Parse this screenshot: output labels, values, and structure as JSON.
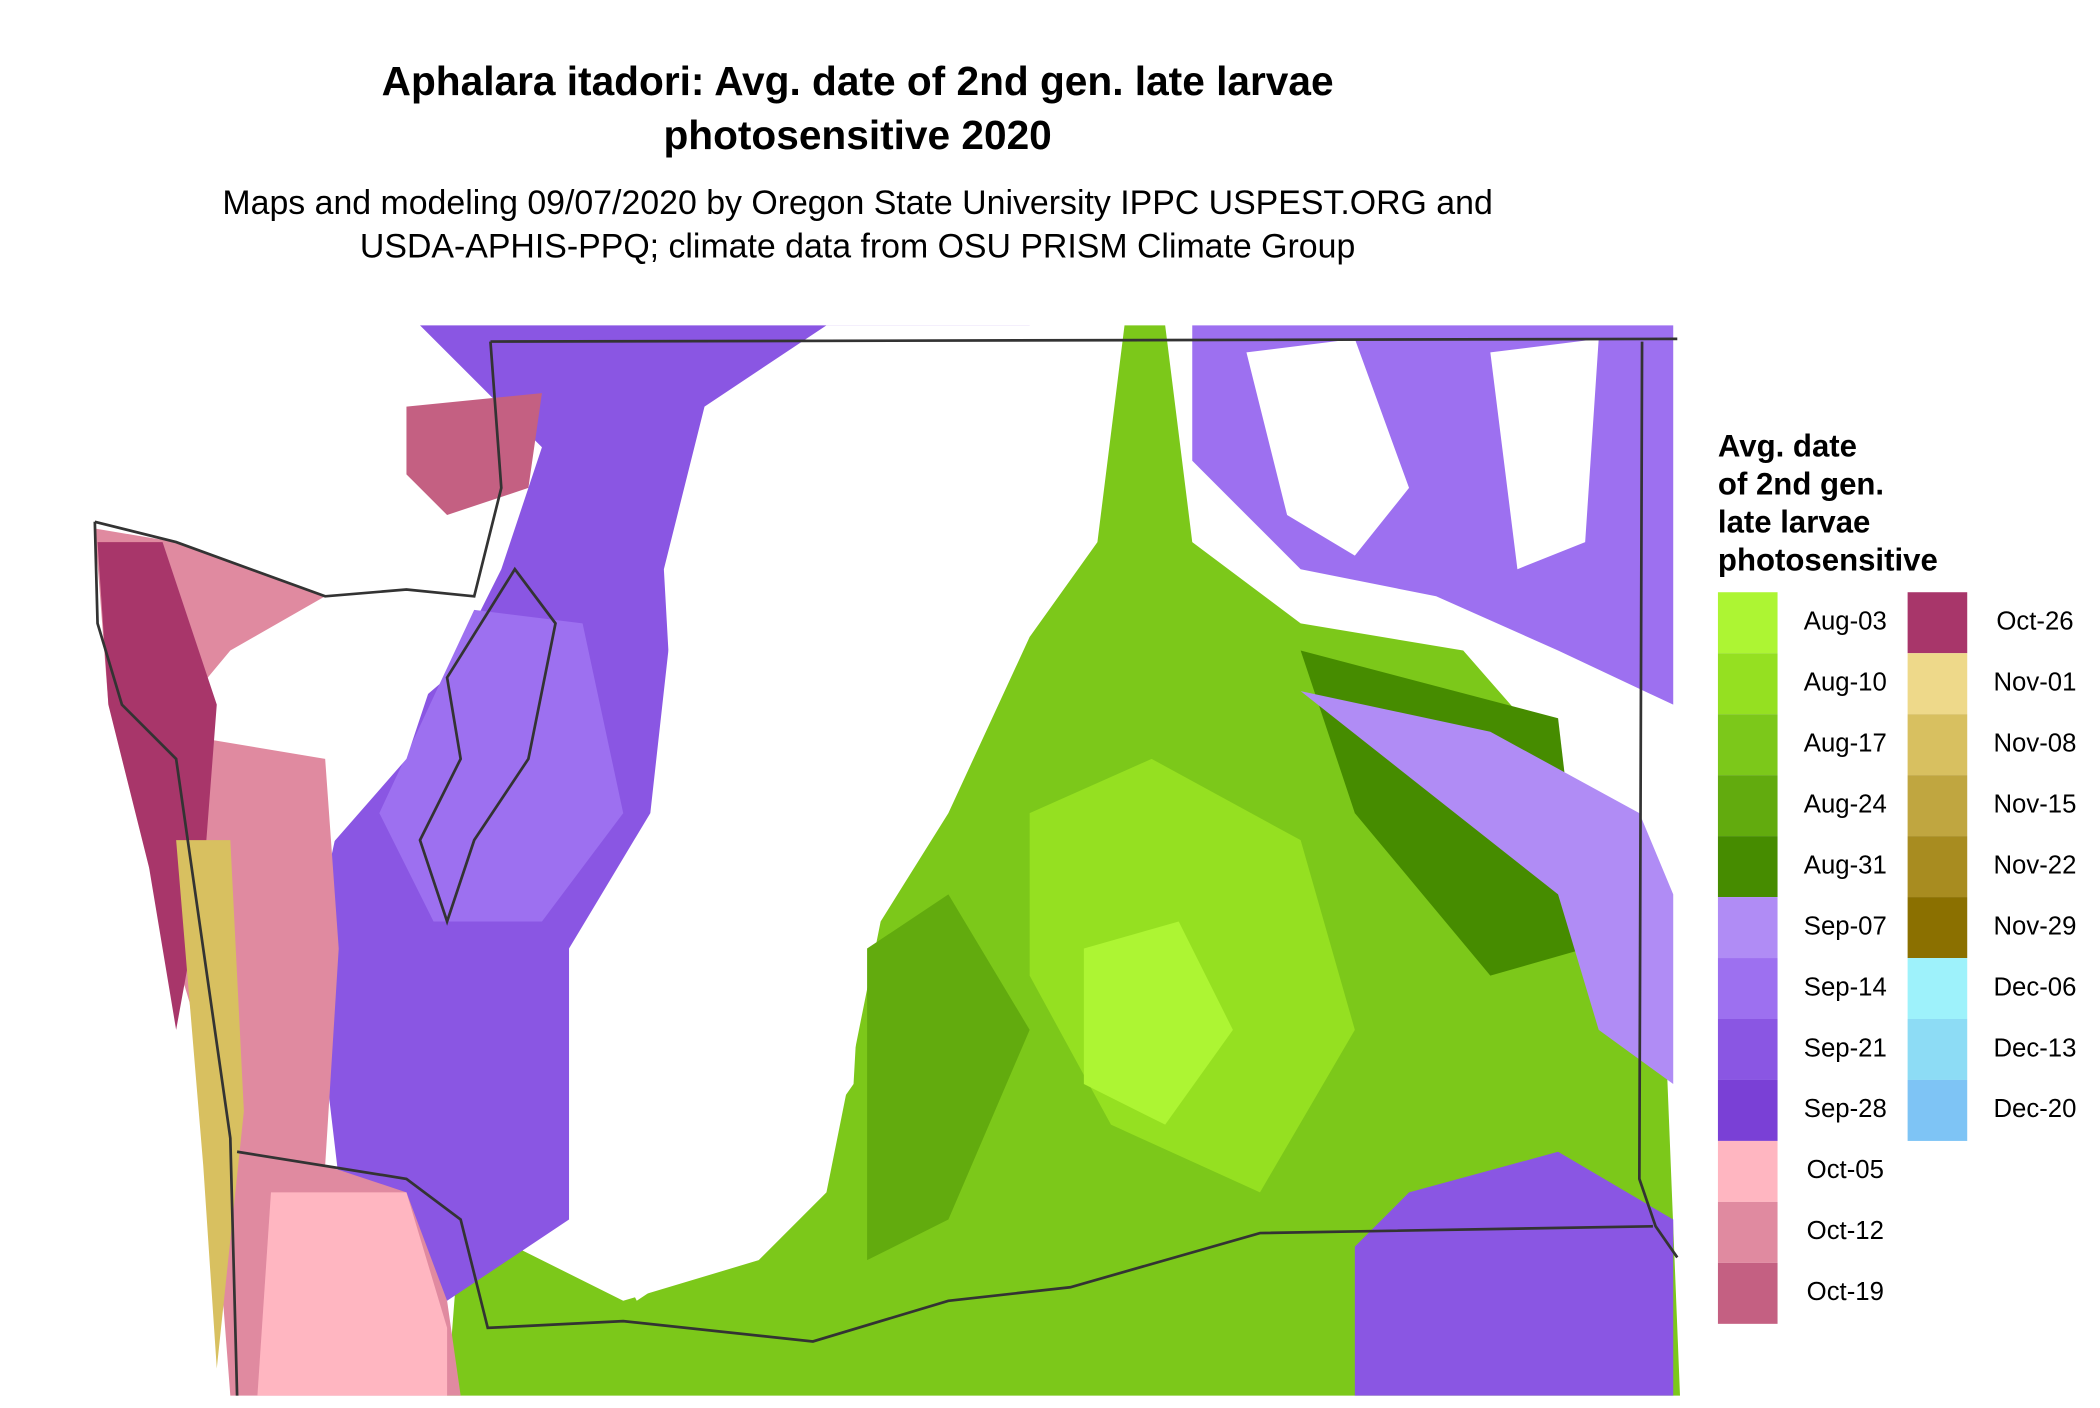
{
  "header": {
    "title": [
      "Aphalara itadori: Avg. date of 2nd gen. late larvae",
      "photosensitive 2020"
    ],
    "subtitle": [
      "Maps and modeling 09/07/2020 by Oregon State University IPPC USPEST.ORG and",
      "USDA-APHIS-PPQ; climate data from OSU PRISM Climate Group"
    ]
  },
  "legend": {
    "title": [
      "Avg. date",
      "of 2nd gen.",
      "late larvae",
      "photosensitive"
    ],
    "items": [
      {
        "label": "Aug-03",
        "color": "#adf533"
      },
      {
        "label": "Aug-10",
        "color": "#95e021"
      },
      {
        "label": "Aug-17",
        "color": "#7cc81a"
      },
      {
        "label": "Aug-24",
        "color": "#62ab0e"
      },
      {
        "label": "Aug-31",
        "color": "#468c00"
      },
      {
        "label": "Sep-07",
        "color": "#b08cf5"
      },
      {
        "label": "Sep-14",
        "color": "#9d70f0"
      },
      {
        "label": "Sep-21",
        "color": "#8a56e3"
      },
      {
        "label": "Sep-28",
        "color": "#7a40d6"
      },
      {
        "label": "Oct-05",
        "color": "#ffb6c1"
      },
      {
        "label": "Oct-12",
        "color": "#e08aa0"
      },
      {
        "label": "Oct-19",
        "color": "#c46082"
      },
      {
        "label": "Oct-26",
        "color": "#a8366a"
      },
      {
        "label": "Nov-01",
        "color": "#eed98a"
      },
      {
        "label": "Nov-08",
        "color": "#d8c060"
      },
      {
        "label": "Nov-15",
        "color": "#c0a640"
      },
      {
        "label": "Nov-22",
        "color": "#a88c20"
      },
      {
        "label": "Nov-29",
        "color": "#8b7000"
      },
      {
        "label": "Dec-06",
        "color": "#9ef2fb"
      },
      {
        "label": "Dec-13",
        "color": "#8ddcf5"
      },
      {
        "label": "Dec-20",
        "color": "#7ec4f5"
      }
    ]
  }
}
